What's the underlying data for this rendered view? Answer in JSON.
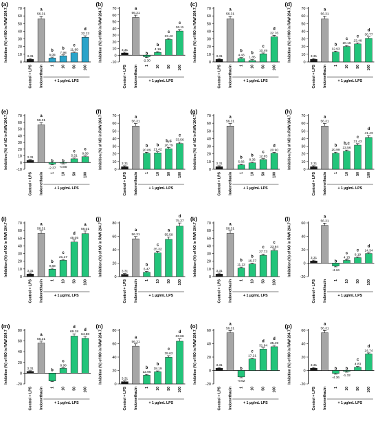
{
  "colors": {
    "control": "#1a1a1a",
    "indomethacin": "#a6a6a6",
    "teal": "#2aa3c9",
    "green": "#22c47a",
    "error": "#000000"
  },
  "chart_data": [
    {
      "panel": "(a)",
      "type": "bar",
      "ylim": [
        0,
        70
      ],
      "yticks": [
        0,
        10,
        20,
        30,
        40,
        50,
        60,
        70
      ],
      "categories": [
        "Control + LPS",
        "Indomethacin",
        "1",
        "10",
        "50",
        "100"
      ],
      "values": [
        3.31,
        56.31,
        5.05,
        7.98,
        11.89,
        32.12
      ],
      "labels": [
        "3.31",
        "56.31",
        "5.05",
        "7.98",
        "11.89",
        "32.12"
      ],
      "letters": [
        "",
        "a",
        "b",
        "b",
        "c",
        "d"
      ],
      "sample_color": "teal",
      "ylabel": "Inhibition (%) of NO in RAW 264.7",
      "group_label": "+ 1 µg/mL LPS"
    },
    {
      "panel": "(b)",
      "type": "bar",
      "ylim": [
        -10,
        70
      ],
      "yticks": [
        -10,
        0,
        10,
        20,
        30,
        40,
        50,
        60,
        70
      ],
      "categories": [
        "Control + LPS",
        "Indomethacin",
        "1",
        "10",
        "50",
        "100"
      ],
      "values": [
        3.31,
        56.31,
        -2.3,
        4.16,
        23.42,
        36.11
      ],
      "labels": [
        "3.31",
        "56.31",
        "-2.30",
        "4.16",
        "23.42",
        "36.11"
      ],
      "letters": [
        "",
        "a",
        "b",
        "b",
        "c",
        "c"
      ],
      "sample_color": "green",
      "ylabel": "Inhibition (%) of NO in RAW 264.7",
      "group_label": "+ 1 µg/mL LPS"
    },
    {
      "panel": "(c)",
      "type": "bar",
      "ylim": [
        0,
        70
      ],
      "yticks": [
        0,
        10,
        20,
        30,
        40,
        50,
        60,
        70
      ],
      "categories": [
        "Control + LPS",
        "Indomethacin",
        "1",
        "10",
        "50",
        "100"
      ],
      "values": [
        3.31,
        56.31,
        4.43,
        1.85,
        10.49,
        32.76
      ],
      "labels": [
        "3.31",
        "56.31",
        "4.43",
        "1.85",
        "10.49",
        "32.76"
      ],
      "letters": [
        "",
        "a",
        "b",
        "b",
        "c",
        "d"
      ],
      "sample_color": "green",
      "ylabel": "Inhibition (%) of NO in RAW 264.7",
      "group_label": "+ 1 µg/mL LPS"
    },
    {
      "panel": "(d)",
      "type": "bar",
      "ylim": [
        0,
        70
      ],
      "yticks": [
        0,
        10,
        20,
        30,
        40,
        50,
        60,
        70
      ],
      "categories": [
        "Control + LPS",
        "Indomethacin",
        "1",
        "10",
        "50",
        "100"
      ],
      "values": [
        3.31,
        56.31,
        12.93,
        20.16,
        23.48,
        30.77
      ],
      "labels": [
        "3.31",
        "56.31",
        "12.93",
        "20.16",
        "23.48",
        "30.77"
      ],
      "letters": [
        "",
        "a",
        "b",
        "c",
        "c",
        "d"
      ],
      "sample_color": "green",
      "ylabel": "Inhibition (%) of NO in RAW 264.7",
      "group_label": "+ 1 µg/mL LPS"
    },
    {
      "panel": "(e)",
      "type": "bar",
      "ylim": [
        -10,
        70
      ],
      "yticks": [
        -10,
        0,
        10,
        20,
        30,
        40,
        50,
        60,
        70
      ],
      "categories": [
        "Control + LPS",
        "Indomethacin",
        "1",
        "10",
        "50",
        "100"
      ],
      "values": [
        3.31,
        56.31,
        -2.37,
        -0.8,
        5.51,
        8.68
      ],
      "labels": [
        "3.31",
        "56.31",
        "-2.37",
        "-0.80",
        "5.51",
        "8.68"
      ],
      "letters": [
        "",
        "a",
        "b",
        "b",
        "c",
        "c"
      ],
      "sample_color": "green",
      "ylabel": "Inhibition (%) of NO in RAW 264.7",
      "group_label": "+ 1 µg/mL LPS"
    },
    {
      "panel": "(f)",
      "type": "bar",
      "ylim": [
        0,
        70
      ],
      "yticks": [
        0,
        10,
        20,
        30,
        40,
        50,
        60,
        70
      ],
      "categories": [
        "Control + LPS",
        "Indomethacin",
        "1",
        "10",
        "50",
        "100"
      ],
      "values": [
        3.31,
        56.31,
        20.89,
        21.42,
        26.79,
        33.56
      ],
      "labels": [
        "3.31",
        "56.31",
        "20.89",
        "21.42",
        "26.79",
        "33.56"
      ],
      "letters": [
        "",
        "a",
        "b",
        "b",
        "b,c",
        "c"
      ],
      "sample_color": "green",
      "ylabel": "Inhibition (%) of NO in RAW 264.7",
      "group_label": "+ 1 µg/mL LPS"
    },
    {
      "panel": "(g)",
      "type": "bar",
      "ylim": [
        0,
        70
      ],
      "yticks": [
        0,
        10,
        20,
        30,
        40,
        50,
        60,
        70
      ],
      "categories": [
        "Control + LPS",
        "Indomethacin",
        "1",
        "10",
        "50",
        "100"
      ],
      "values": [
        3.31,
        56.31,
        5.66,
        8.36,
        12.65,
        20.9
      ],
      "labels": [
        "3.31",
        "56.31",
        "5.66",
        "8.36",
        "12.65",
        "20.90"
      ],
      "letters": [
        "",
        "a",
        "b",
        "b",
        "c",
        "d"
      ],
      "sample_color": "green",
      "ylabel": "Inhibition (%) of NO in RAW 264.7",
      "group_label": "+ 1 µg/mL LPS"
    },
    {
      "panel": "(h)",
      "type": "bar",
      "ylim": [
        0,
        70
      ],
      "yticks": [
        0,
        10,
        20,
        30,
        40,
        50,
        60,
        70
      ],
      "categories": [
        "Control + LPS",
        "Indomethacin",
        "1",
        "10",
        "50",
        "100"
      ],
      "values": [
        3.31,
        56.31,
        20.99,
        23.56,
        31.43,
        41.43
      ],
      "labels": [
        "3.31",
        "56.31",
        "20.99",
        "23.56",
        "31.43",
        "41.43"
      ],
      "letters": [
        "",
        "a",
        "b",
        "b,c",
        "c",
        "d"
      ],
      "sample_color": "green",
      "ylabel": "Inhibition (%) of NO in RAW 264.7",
      "group_label": "+ 1 µg/mL LPS"
    },
    {
      "panel": "(i)",
      "type": "bar",
      "ylim": [
        0,
        70
      ],
      "yticks": [
        0,
        10,
        20,
        30,
        40,
        50,
        60,
        70
      ],
      "categories": [
        "Control + LPS",
        "Indomethacin",
        "1",
        "10",
        "50",
        "100"
      ],
      "values": [
        3.31,
        56.31,
        9.68,
        21.17,
        45.05,
        56.01
      ],
      "labels": [
        "3.31",
        "56.31",
        "9.68",
        "21.17",
        "45.05",
        "56.01"
      ],
      "letters": [
        "",
        "a",
        "b",
        "c",
        "d",
        "a"
      ],
      "sample_color": "green",
      "ylabel": "Inhibition (%) of NO in RAW 264.7",
      "group_label": "+ 1 µg/mL LPS"
    },
    {
      "panel": "(j)",
      "type": "bar",
      "ylim": [
        0,
        80
      ],
      "yticks": [
        0,
        20,
        40,
        60,
        80
      ],
      "categories": [
        "Control + LPS",
        "Indomethacin",
        "1",
        "10",
        "50",
        "100"
      ],
      "values": [
        3.31,
        56.31,
        6.47,
        35.32,
        55.59,
        75.37
      ],
      "labels": [
        "3.31",
        "56.31",
        "6.47",
        "35.32",
        "55.59",
        "75.37"
      ],
      "letters": [
        "",
        "a",
        "b",
        "c",
        "a",
        "d"
      ],
      "sample_color": "green",
      "ylabel": "Inhibition (%) of NO in RAW 264.7",
      "group_label": "+ 1 µg/mL LPS"
    },
    {
      "panel": "(k)",
      "type": "bar",
      "ylim": [
        0,
        70
      ],
      "yticks": [
        0,
        10,
        20,
        30,
        40,
        50,
        60,
        70
      ],
      "categories": [
        "Control + LPS",
        "Indomethacin",
        "1",
        "10",
        "50",
        "100"
      ],
      "values": [
        3.31,
        56.31,
        11.22,
        16.37,
        27.73,
        33.94
      ],
      "labels": [
        "3.31",
        "56.31",
        "11.22",
        "16.37",
        "27.73",
        "33.94"
      ],
      "letters": [
        "",
        "a",
        "b",
        "b",
        "c",
        "c"
      ],
      "sample_color": "green",
      "ylabel": "Inhibition (%) of NO in RAW 264.7",
      "group_label": "+ 1 µg/mL LPS"
    },
    {
      "panel": "(l)",
      "type": "bar",
      "ylim": [
        -20,
        60
      ],
      "yticks": [
        -20,
        0,
        20,
        40,
        60
      ],
      "categories": [
        "Control + LPS",
        "Indomethacin",
        "1",
        "10",
        "50",
        "100"
      ],
      "values": [
        3.31,
        56.31,
        -4.34,
        4.15,
        8.19,
        14.34
      ],
      "labels": [
        "3.31",
        "56.31",
        "-4.34",
        "4.15",
        "8.19",
        "14.34"
      ],
      "letters": [
        "",
        "a",
        "b",
        "c",
        "c",
        "d"
      ],
      "sample_color": "green",
      "ylabel": "Inhibition (%) of NO in RAW 264.7",
      "group_label": "+ 1 µg/mL LPS"
    },
    {
      "panel": "(m)",
      "type": "bar",
      "ylim": [
        -20,
        80
      ],
      "yticks": [
        -20,
        0,
        20,
        40,
        60,
        80
      ],
      "categories": [
        "Control + LPS",
        "Indomethacin",
        "1",
        "10",
        "50",
        "100"
      ],
      "values": [
        3.31,
        56.31,
        -14.5,
        8.98,
        69.18,
        64.88
      ],
      "labels": [
        "3.31",
        "56.31",
        "",
        "8.98",
        "69.18",
        "64.88"
      ],
      "letters": [
        "",
        "a",
        "b",
        "c",
        "d",
        "d"
      ],
      "sample_color": "green",
      "ylabel": "Inhibition (%) of NO in RAW 264.7",
      "group_label": "+ 1 µg/mL LPS"
    },
    {
      "panel": "(n)",
      "type": "bar",
      "ylim": [
        0,
        80
      ],
      "yticks": [
        0,
        20,
        40,
        60,
        80
      ],
      "categories": [
        "Control + LPS",
        "Indomethacin",
        "1",
        "10",
        "50",
        "100"
      ],
      "values": [
        3.31,
        56.31,
        12.96,
        18.19,
        39.62,
        63.66
      ],
      "labels": [
        "3.31",
        "56.31",
        "12.96",
        "18.19",
        "39.62",
        "63.66"
      ],
      "letters": [
        "",
        "a",
        "b",
        "b",
        "c",
        "d"
      ],
      "sample_color": "green",
      "ylabel": "Inhibition (%) of NO in RAW 264.7",
      "group_label": "+ 1 µg/mL LPS"
    },
    {
      "panel": "(o)",
      "type": "bar",
      "ylim": [
        -20,
        60
      ],
      "yticks": [
        -20,
        0,
        20,
        40,
        60
      ],
      "categories": [
        "Control + LPS",
        "Indomethacin",
        "1",
        "10",
        "50",
        "100"
      ],
      "values": [
        3.31,
        56.31,
        -9.62,
        17.21,
        31.94,
        35.49
      ],
      "labels": [
        "3.31",
        "56.31",
        "-9.62",
        "17.21",
        "31.94",
        "35.49"
      ],
      "letters": [
        "",
        "a",
        "b",
        "c",
        "d",
        "d"
      ],
      "sample_color": "green",
      "ylabel": "Inhibition (%) of NO in RAW 264.7",
      "group_label": "+ 1 µg/mL LPS"
    },
    {
      "panel": "(p)",
      "type": "bar",
      "ylim": [
        -20,
        60
      ],
      "yticks": [
        -20,
        0,
        20,
        40,
        60
      ],
      "categories": [
        "Control + LPS",
        "Indomethacin",
        "1",
        "10",
        "50",
        "100"
      ],
      "values": [
        3.31,
        56.31,
        -4.36,
        -1.32,
        4.83,
        24.74
      ],
      "labels": [
        "3.31",
        "56.31",
        "-4.36",
        "-1.32",
        "4.83",
        "24.74"
      ],
      "letters": [
        "",
        "a",
        "b",
        "b",
        "c",
        "d"
      ],
      "sample_color": "green",
      "ylabel": "Inhibition (%) of NO in RAW 264.7",
      "group_label": "+ 1 µg/mL LPS"
    }
  ]
}
